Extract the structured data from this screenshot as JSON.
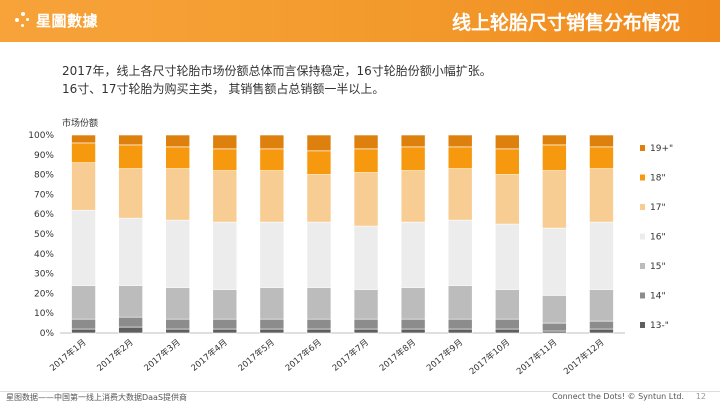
{
  "brand": {
    "name": "星圖數據"
  },
  "header": {
    "title": "线上轮胎尺寸销售分布情况"
  },
  "description": {
    "line1": "2017年，线上各尺寸轮胎市场份额总体而言保持稳定，16寸轮胎份额小幅扩张。",
    "line2": "16寸、17寸轮胎为购买主类， 其销售额占总销额一半以上。"
  },
  "chart_data": {
    "type": "bar",
    "stacked": true,
    "ylabel": "市场份额",
    "ylim": [
      0,
      100
    ],
    "yticks": [
      "0%",
      "10%",
      "20%",
      "30%",
      "40%",
      "50%",
      "60%",
      "70%",
      "80%",
      "90%",
      "100%"
    ],
    "categories": [
      "2017年1月",
      "2017年2月",
      "2017年3月",
      "2017年4月",
      "2017年5月",
      "2017年6月",
      "2017年7月",
      "2017年8月",
      "2017年9月",
      "2017年10月",
      "2017年11月",
      "2017年12月"
    ],
    "legend_position": "right",
    "series": [
      {
        "name": "13-\"",
        "color": "#5f5f5f",
        "values": [
          2,
          3,
          2,
          2,
          2,
          2,
          2,
          2,
          2,
          2,
          1,
          2
        ]
      },
      {
        "name": "14\"",
        "color": "#8c8c8c",
        "values": [
          5,
          5,
          5,
          5,
          5,
          5,
          5,
          5,
          5,
          5,
          4,
          4
        ]
      },
      {
        "name": "15\"",
        "color": "#bcbcbc",
        "values": [
          17,
          16,
          16,
          15,
          16,
          16,
          15,
          16,
          17,
          15,
          14,
          16
        ]
      },
      {
        "name": "16\"",
        "color": "#ececec",
        "values": [
          38,
          34,
          34,
          34,
          33,
          33,
          32,
          33,
          33,
          33,
          34,
          34
        ]
      },
      {
        "name": "17\"",
        "color": "#f7cd93",
        "values": [
          24,
          25,
          26,
          26,
          26,
          24,
          27,
          26,
          26,
          25,
          29,
          27
        ]
      },
      {
        "name": "18\"",
        "color": "#f7990f",
        "values": [
          10,
          12,
          11,
          11,
          11,
          12,
          12,
          12,
          11,
          13,
          13,
          11
        ]
      },
      {
        "name": "19+\"",
        "color": "#dd800e",
        "values": [
          4,
          5,
          6,
          7,
          7,
          8,
          7,
          6,
          6,
          7,
          5,
          6
        ]
      }
    ]
  },
  "footer": {
    "left": "星图数据——中国第一线上消费大数据DaaS提供商",
    "right": "Connect the Dots! © Syntun Ltd.",
    "page": "12"
  }
}
